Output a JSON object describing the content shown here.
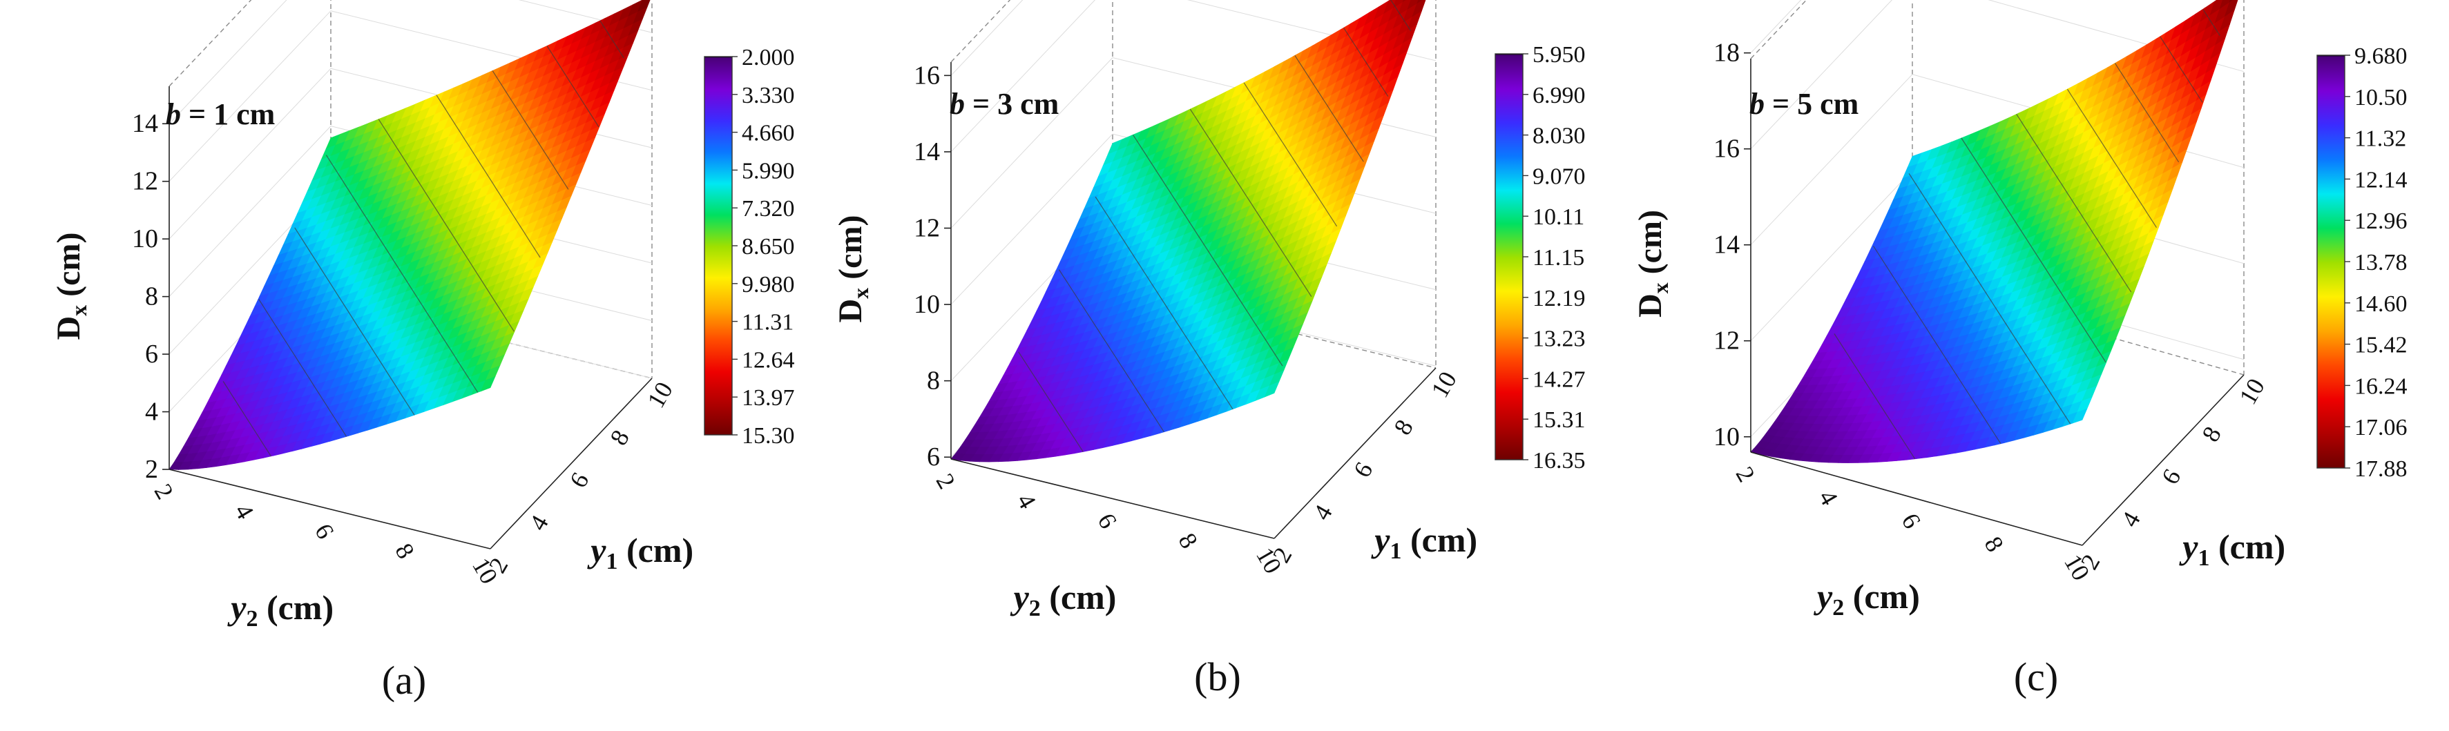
{
  "figure": {
    "panels": [
      {
        "label": "(a)",
        "annotation": {
          "var": "b",
          "rest": " = 1 cm"
        }
      },
      {
        "label": "(b)",
        "annotation": {
          "var": "b",
          "rest": " = 3 cm"
        }
      },
      {
        "label": "(c)",
        "annotation": {
          "var": "b",
          "rest": " = 5 cm"
        }
      }
    ]
  },
  "colors": {
    "colormap": [
      "#000000",
      "#4a007a",
      "#7a00d8",
      "#3a2cff",
      "#0a78ff",
      "#00e8f2",
      "#00e060",
      "#9fe000",
      "#fff000",
      "#ffa800",
      "#ff4a00",
      "#ee0000",
      "#b00000",
      "#6e0000"
    ]
  },
  "chart_data": [
    {
      "type": "surface3d",
      "title": "b = 1 cm",
      "xlabel": "y2 (cm)",
      "ylabel": "y1 (cm)",
      "zlabel": "Dx (cm)",
      "x_ticks": [
        "2",
        "4",
        "6",
        "8",
        "10"
      ],
      "y_ticks": [
        "2",
        "4",
        "6",
        "8",
        "10"
      ],
      "z_ticks": [
        "2",
        "4",
        "6",
        "8",
        "10",
        "12",
        "14"
      ],
      "zlim": [
        2,
        15.3
      ],
      "colorbar_ticks": [
        "2.000",
        "3.330",
        "4.660",
        "5.990",
        "7.320",
        "8.650",
        "9.980",
        "11.31",
        "12.64",
        "13.97",
        "15.30"
      ]
    },
    {
      "type": "surface3d",
      "title": "b = 3 cm",
      "xlabel": "y2 (cm)",
      "ylabel": "y1 (cm)",
      "zlabel": "Dx (cm)",
      "x_ticks": [
        "2",
        "4",
        "6",
        "8",
        "10"
      ],
      "y_ticks": [
        "2",
        "4",
        "6",
        "8",
        "10"
      ],
      "z_ticks": [
        "6",
        "8",
        "10",
        "12",
        "14",
        "16"
      ],
      "zlim": [
        5.95,
        16.35
      ],
      "colorbar_ticks": [
        "5.950",
        "6.990",
        "8.030",
        "9.070",
        "10.11",
        "11.15",
        "12.19",
        "13.23",
        "14.27",
        "15.31",
        "16.35"
      ]
    },
    {
      "type": "surface3d",
      "title": "b = 5 cm",
      "xlabel": "y2 (cm)",
      "ylabel": "y1 (cm)",
      "zlabel": "Dx (cm)",
      "x_ticks": [
        "2",
        "4",
        "6",
        "8",
        "10"
      ],
      "y_ticks": [
        "2",
        "4",
        "6",
        "8",
        "10"
      ],
      "z_ticks": [
        "10",
        "12",
        "14",
        "16",
        "18"
      ],
      "zlim": [
        9.68,
        17.88
      ],
      "colorbar_ticks": [
        "9.680",
        "10.50",
        "11.32",
        "12.14",
        "12.96",
        "13.78",
        "14.60",
        "15.42",
        "16.24",
        "17.06",
        "17.88"
      ]
    }
  ]
}
